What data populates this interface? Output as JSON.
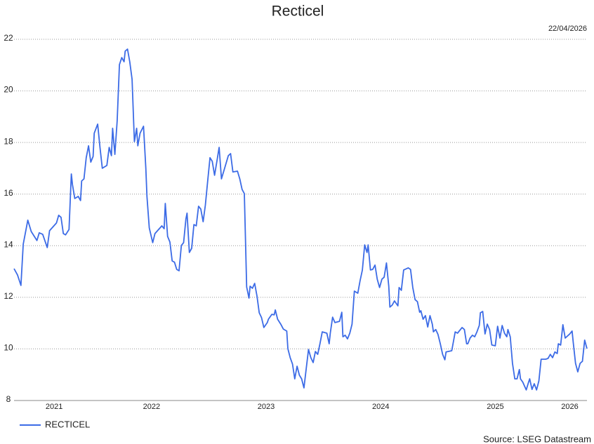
{
  "chart_data": {
    "type": "line",
    "title": "Recticel",
    "subtitle": "22/04/2026",
    "source": "Source: LSEG Datastream",
    "xlim": [
      2021.3,
      2026.3
    ],
    "xticks": [
      2021,
      2022,
      2023,
      2024,
      2025,
      2026
    ],
    "ylim": [
      8,
      22
    ],
    "yticks": [
      8,
      10,
      12,
      14,
      16,
      18,
      20,
      22
    ],
    "grid": true,
    "legend": "bottom-left",
    "x": [
      2021.3,
      2021.33,
      2021.36,
      2021.38,
      2021.42,
      2021.45,
      2021.5,
      2021.52,
      2021.55,
      2021.59,
      2021.61,
      2021.67,
      2021.69,
      2021.71,
      2021.73,
      2021.75,
      2021.78,
      2021.8,
      2021.81,
      2021.83,
      2021.86,
      2021.88,
      2021.89,
      2021.91,
      2021.93,
      2021.95,
      2021.97,
      2021.99,
      2022.0,
      2022.03,
      2022.05,
      2022.07,
      2022.11,
      2022.13,
      2022.15,
      2022.16,
      2022.18,
      2022.2,
      2022.22,
      2022.24,
      2022.26,
      2022.27,
      2022.29,
      2022.31,
      2022.33,
      2022.35,
      2022.37,
      2022.38,
      2022.4,
      2022.43,
      2022.45,
      2022.46,
      2022.48,
      2022.51,
      2022.53,
      2022.59,
      2022.61,
      2022.62,
      2022.64,
      2022.66,
      2022.68,
      2022.7,
      2022.72,
      2022.74,
      2022.76,
      2022.78,
      2022.8,
      2022.81,
      2022.83,
      2022.85,
      2022.87,
      2022.89,
      2022.91,
      2022.93,
      2022.95,
      2022.97,
      2022.99,
      2023.01,
      2023.03,
      2023.05,
      2023.07,
      2023.09,
      2023.11,
      2023.13,
      2023.17,
      2023.19,
      2023.21,
      2023.25,
      2023.27,
      2023.29,
      2023.31,
      2023.33,
      2023.35,
      2023.36,
      2023.38,
      2023.4,
      2023.42,
      2023.44,
      2023.46,
      2023.48,
      2023.51,
      2023.52,
      2023.55,
      2023.57,
      2023.58,
      2023.6,
      2023.63,
      2023.65,
      2023.68,
      2023.69,
      2023.71,
      2023.73,
      2023.75,
      2023.77,
      2023.79,
      2023.81,
      2023.83,
      2023.85,
      2023.87,
      2023.89,
      2023.91,
      2023.93,
      2023.95,
      2023.97,
      2023.99,
      2024.03,
      2024.05,
      2024.06,
      2024.08,
      2024.1,
      2024.14,
      2024.16,
      2024.17,
      2024.19,
      2024.21,
      2024.23,
      2024.25,
      2024.27,
      2024.3,
      2024.32,
      2024.34,
      2024.36,
      2024.38,
      2024.39,
      2024.41,
      2024.43,
      2024.45,
      2024.47,
      2024.49,
      2024.51,
      2024.53,
      2024.55,
      2024.57,
      2024.58,
      2024.6,
      2024.62,
      2024.65,
      2024.66,
      2024.68,
      2024.7,
      2024.74,
      2024.76,
      2024.78,
      2024.8,
      2024.82,
      2024.84,
      2024.85,
      2024.87,
      2024.89,
      2024.91,
      2024.93,
      2024.95,
      2024.96,
      2024.98,
      2025.0,
      2025.02,
      2025.04,
      2025.06,
      2025.07,
      2025.12,
      2025.14,
      2025.15,
      2025.17,
      2025.21,
      2025.23,
      2025.25,
      2025.26,
      2025.28,
      2025.3,
      2025.32,
      2025.34,
      2025.36,
      2025.37,
      2025.39,
      2025.41,
      2025.43,
      2025.45,
      2025.47,
      2025.5,
      2025.52,
      2025.54,
      2025.56,
      2025.58,
      2025.6,
      2025.61,
      2025.63,
      2025.65,
      2025.67,
      2025.69,
      2025.71,
      2025.72,
      2025.74,
      2025.77,
      2025.79,
      2025.8,
      2025.82,
      2025.84,
      2025.86,
      2025.88,
      2025.9,
      2025.94,
      2025.96,
      2025.98,
      2026.0,
      2026.02,
      2026.04,
      2026.05,
      2026.07,
      2026.09,
      2026.11,
      2026.15,
      2026.17,
      2026.18,
      2026.2,
      2026.22,
      2026.24,
      2026.26,
      2026.28,
      2026.3
    ],
    "series": [
      {
        "name": "RECTICEL",
        "color": "#3c6be6",
        "values": [
          13.11,
          12.87,
          12.46,
          14.06,
          14.99,
          14.55,
          14.2,
          14.5,
          14.44,
          13.93,
          14.58,
          14.88,
          15.18,
          15.1,
          14.47,
          14.42,
          14.63,
          16.78,
          16.37,
          15.83,
          15.91,
          15.75,
          16.51,
          16.59,
          17.41,
          17.87,
          17.24,
          17.46,
          18.36,
          18.71,
          17.81,
          17.0,
          17.11,
          17.81,
          17.49,
          18.55,
          17.54,
          18.85,
          21.02,
          21.29,
          21.13,
          21.54,
          21.62,
          21.13,
          20.45,
          18.03,
          18.55,
          17.87,
          18.36,
          18.63,
          17.0,
          15.91,
          14.69,
          14.12,
          14.47,
          14.77,
          14.66,
          15.64,
          14.36,
          14.14,
          13.41,
          13.36,
          13.08,
          13.03,
          14.01,
          14.12,
          15.04,
          15.26,
          13.74,
          13.9,
          14.82,
          14.77,
          15.53,
          15.42,
          14.93,
          15.58,
          16.51,
          17.41,
          17.27,
          16.73,
          17.27,
          17.81,
          16.59,
          16.89,
          17.49,
          17.57,
          16.86,
          16.89,
          16.59,
          16.18,
          16.02,
          12.4,
          11.97,
          12.43,
          12.35,
          12.54,
          12.05,
          11.4,
          11.21,
          10.83,
          11.02,
          11.15,
          11.34,
          11.32,
          11.51,
          11.15,
          10.94,
          10.77,
          10.69,
          10.01,
          9.66,
          9.41,
          8.84,
          9.33,
          8.98,
          8.84,
          8.49,
          9.25,
          9.98,
          9.66,
          9.47,
          9.9,
          9.79,
          10.2,
          10.66,
          10.61,
          10.2,
          10.61,
          11.23,
          11.02,
          11.07,
          11.42,
          10.47,
          10.53,
          10.39,
          10.61,
          10.96,
          12.24,
          12.16,
          12.65,
          13.06,
          14.03,
          13.74,
          14.03,
          13.06,
          13.08,
          13.25,
          12.7,
          12.38,
          12.7,
          12.78,
          13.33,
          12.43,
          11.62,
          11.7,
          11.86,
          11.67,
          12.38,
          12.27,
          13.06,
          13.14,
          13.08,
          12.38,
          11.91,
          11.83,
          11.42,
          11.48,
          11.15,
          11.29,
          10.85,
          11.29,
          10.96,
          10.66,
          10.75,
          10.56,
          10.2,
          9.79,
          9.58,
          9.88,
          9.93,
          10.42,
          10.66,
          10.61,
          10.83,
          10.75,
          10.2,
          10.2,
          10.42,
          10.53,
          10.47,
          10.66,
          10.91,
          11.4,
          11.45,
          10.58,
          10.96,
          10.75,
          10.15,
          10.12,
          10.88,
          10.42,
          10.91,
          10.61,
          10.47,
          10.75,
          10.47,
          9.44,
          8.84,
          8.84,
          9.2,
          8.84,
          8.71,
          8.41,
          8.71,
          8.84,
          8.43,
          8.65,
          8.41,
          8.76,
          9.6,
          9.6,
          9.63,
          9.79,
          9.66,
          9.88,
          9.82,
          10.2,
          10.15,
          10.94,
          10.42,
          10.58,
          10.69,
          10.26,
          9.44,
          9.11,
          9.44,
          9.52,
          10.34,
          10.01
        ]
      }
    ]
  }
}
